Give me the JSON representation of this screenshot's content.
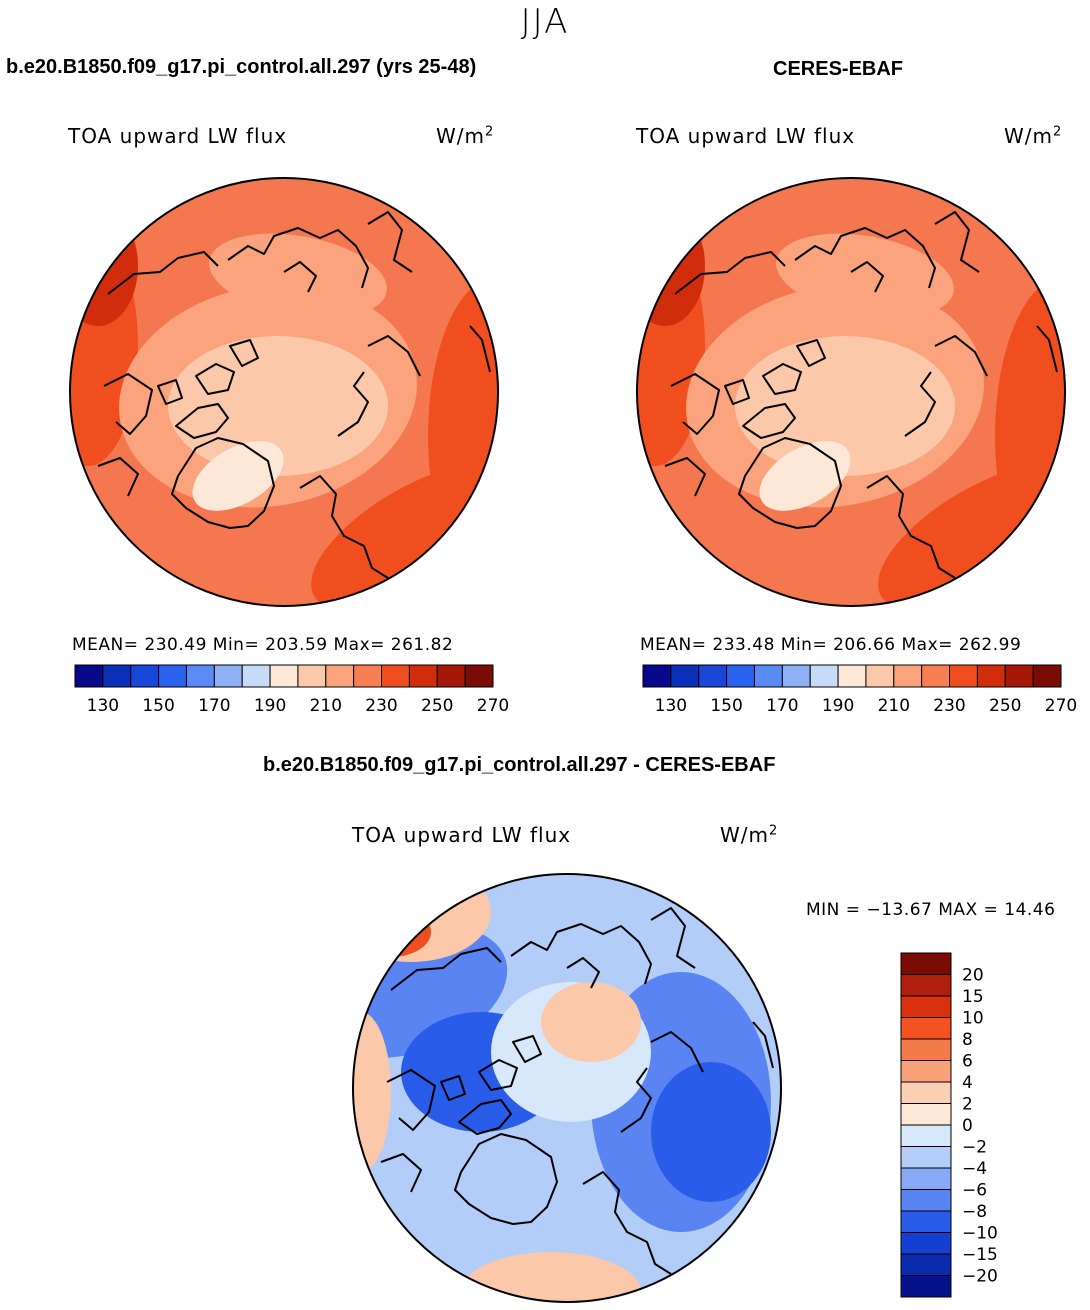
{
  "title": "JJA",
  "panels": [
    {
      "title": "b.e20.B1850.f09_g17.pi_control.all.297 (yrs 25-48)",
      "variable": "TOA upward LW flux",
      "units": "W/m",
      "units_exp": "2",
      "stats": "MEAN= 230.49   Min= 203.59   Max= 261.82"
    },
    {
      "title": "CERES-EBAF",
      "variable": "TOA upward LW flux",
      "units": "W/m",
      "units_exp": "2",
      "stats": "MEAN= 233.48   Min= 206.66   Max= 262.99"
    },
    {
      "title": "b.e20.B1850.f09_g17.pi_control.all.297 - CERES-EBAF",
      "variable": "TOA upward LW flux",
      "units": "W/m",
      "units_exp": "2",
      "stats": "MIN = −13.67 MAX =   14.46"
    }
  ],
  "abs_colorbar": {
    "colors": [
      "#08088a",
      "#0a2fb8",
      "#1846d8",
      "#2a62f0",
      "#5a8af5",
      "#8fb2f7",
      "#c5dbf8",
      "#fde8d8",
      "#fcc8aa",
      "#fba37c",
      "#f77f52",
      "#f04e1f",
      "#d12c0c",
      "#a51808",
      "#7a0b05"
    ],
    "tick_labels": [
      "130",
      "150",
      "170",
      "190",
      "210",
      "230",
      "250",
      "270"
    ]
  },
  "diff_colorbar": {
    "colors": [
      "#7a0b05",
      "#b01f0a",
      "#d8320d",
      "#f55221",
      "#f57a4a",
      "#f9a27a",
      "#fbcfb4",
      "#fde8d8",
      "#d7e8fb",
      "#b2cdf8",
      "#86aaf5",
      "#5a84f2",
      "#2a5cea",
      "#143fd2",
      "#0a2aae",
      "#06128a"
    ],
    "tick_labels": [
      "20",
      "15",
      "10",
      "8",
      "6",
      "4",
      "2",
      "0",
      "−2",
      "−4",
      "−6",
      "−8",
      "−10",
      "−15",
      "−20"
    ]
  },
  "map_colors": {
    "abs_base": "#f4774f",
    "abs_light": "#fba37c",
    "abs_lighter": "#fcc8aa",
    "abs_lightest": "#fde8d8",
    "abs_dark": "#f04e1f",
    "abs_darker": "#d12c0c",
    "diff_base": "#b2cdf8",
    "diff_blue": "#5a84f2",
    "diff_deep": "#2a5cea",
    "diff_pale": "#d7e8fb",
    "diff_warm": "#fcc8aa",
    "diff_red": "#f04e1f",
    "coast": "#000000"
  }
}
